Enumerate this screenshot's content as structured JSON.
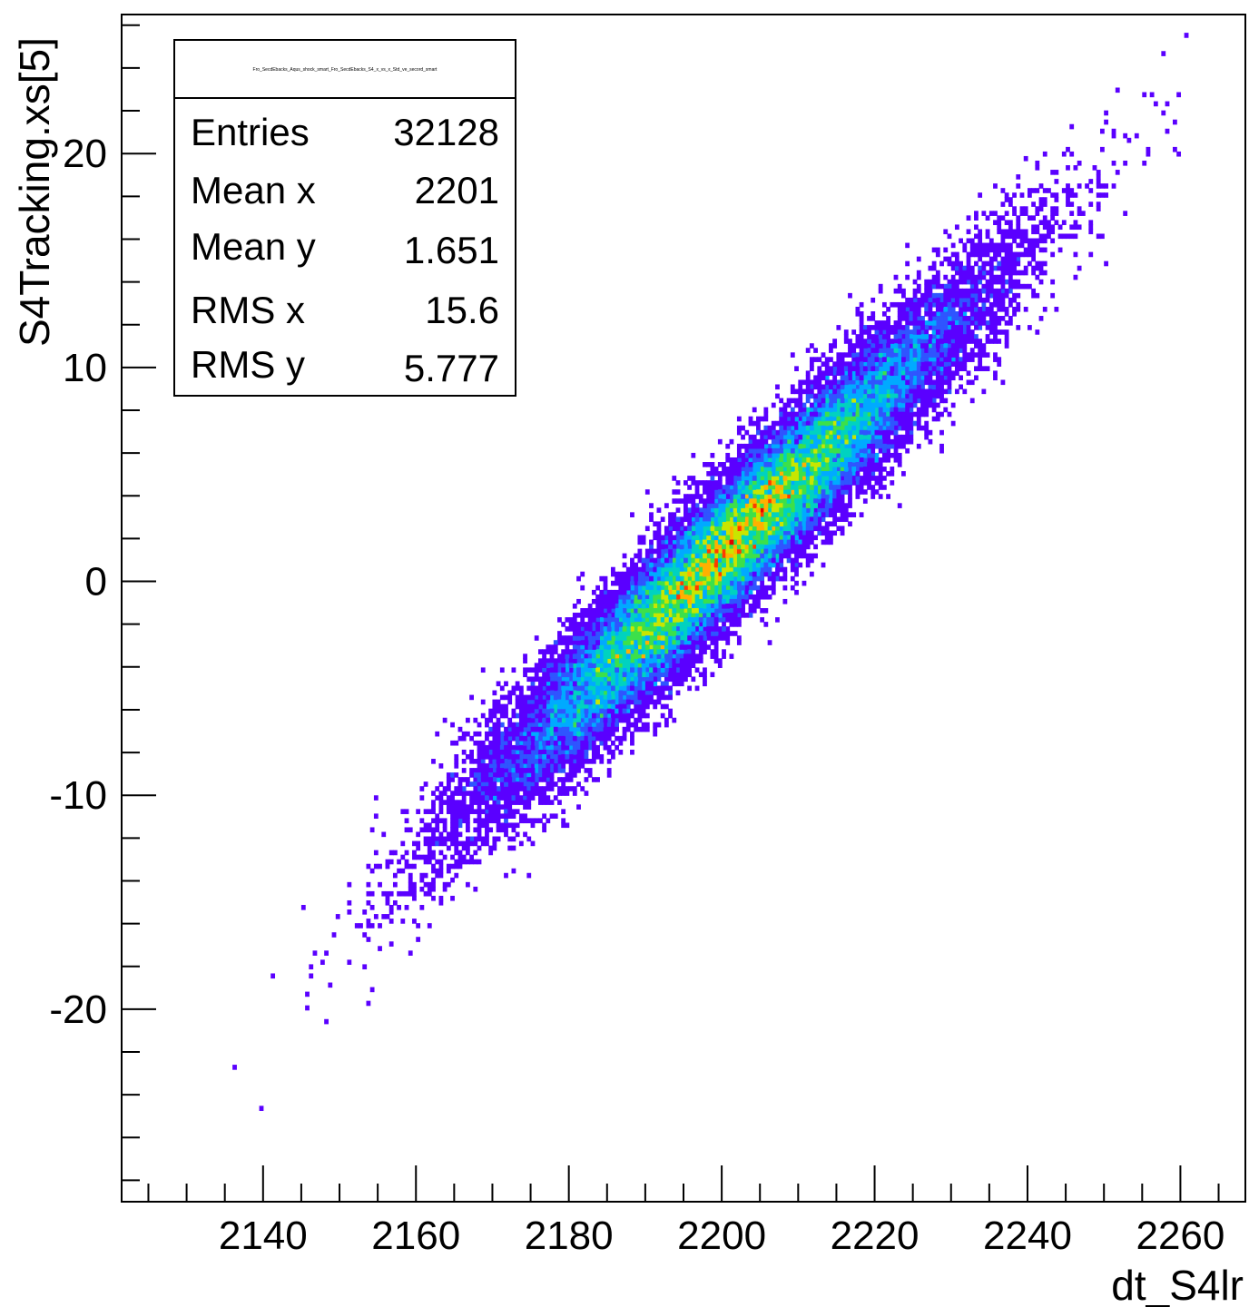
{
  "chart_data": {
    "type": "heatmap",
    "title": "",
    "xlabel": "dt_S4lr",
    "ylabel": "S4Tracking.xs[5]",
    "xlim": [
      2121.5,
      2268.5
    ],
    "ylim": [
      -29,
      26.5
    ],
    "x_ticks": [
      2140,
      2160,
      2180,
      2200,
      2220,
      2240,
      2260
    ],
    "y_ticks": [
      -20,
      -10,
      0,
      10,
      20
    ],
    "palette": [
      "#5a00ff",
      "#2f55ff",
      "#00aaff",
      "#00d2c0",
      "#3ce04a",
      "#c8e600",
      "#ffb000",
      "#ff3a00",
      "#e60000"
    ],
    "grid": false,
    "stats_box": {
      "title": "Fro_SecdEbacks_Aqus_shock_smart_Fro_SecdEbacks_S4_x_vs_x_Std_ve_secord_smart",
      "entries_label": "Entries",
      "entries_value": "32128",
      "mean_x_label": "Mean x",
      "mean_x_value": "2201",
      "mean_y_label": "Mean y",
      "mean_y_value": "1.651",
      "rms_x_label": "RMS x",
      "rms_x_value": "15.6",
      "rms_y_label": "RMS y",
      "rms_y_value": "5.777"
    },
    "distribution": {
      "entries": 32128,
      "mean_x": 2201,
      "mean_y": 1.651,
      "rms_x": 15.6,
      "rms_y": 5.777,
      "correlation": 0.96
    }
  }
}
